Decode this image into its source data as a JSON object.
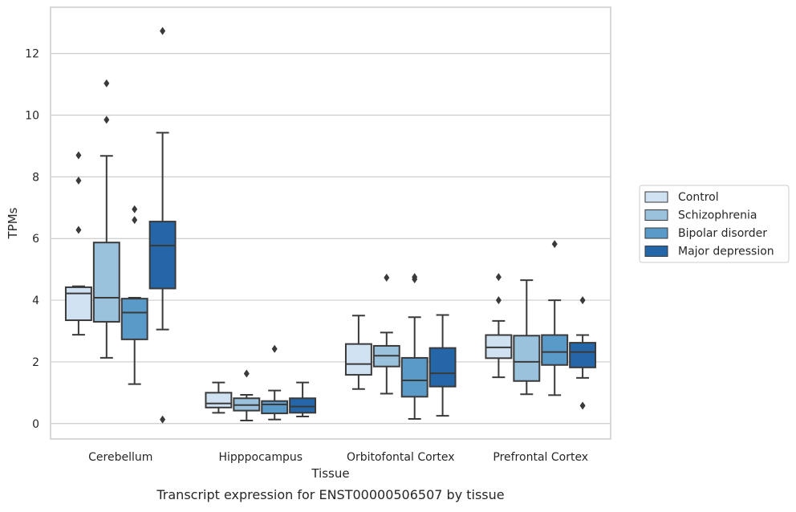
{
  "chart_data": {
    "type": "boxplot",
    "title": "Transcript expression for ENST00000506507 by tissue",
    "xlabel": "Tissue",
    "ylabel": "TPMs",
    "ylim": [
      -0.5,
      13.5
    ],
    "yticks": [
      0,
      2,
      4,
      6,
      8,
      10,
      12
    ],
    "grid": "horizontal",
    "legend_placement": "right",
    "categories": [
      "Cerebellum",
      "Hipppocampus",
      "Orbitofontal Cortex",
      "Prefrontal Cortex"
    ],
    "series": [
      {
        "name": "Control",
        "color": "#d0e2f2",
        "boxes": [
          {
            "whislo": 2.88,
            "q1": 3.35,
            "med": 4.22,
            "q3": 4.42,
            "whishi": 4.45,
            "fliers": [
              6.28,
              7.88,
              8.7
            ]
          },
          {
            "whislo": 0.35,
            "q1": 0.52,
            "med": 0.65,
            "q3": 1.0,
            "whishi": 1.33,
            "fliers": []
          },
          {
            "whislo": 1.12,
            "q1": 1.58,
            "med": 1.93,
            "q3": 2.58,
            "whishi": 3.5,
            "fliers": []
          },
          {
            "whislo": 1.5,
            "q1": 2.12,
            "med": 2.47,
            "q3": 2.87,
            "whishi": 3.33,
            "fliers": [
              4.0,
              4.75
            ]
          }
        ]
      },
      {
        "name": "Schizophrenia",
        "color": "#9ac2dd",
        "boxes": [
          {
            "whislo": 2.13,
            "q1": 3.3,
            "med": 4.08,
            "q3": 5.87,
            "whishi": 8.68,
            "fliers": [
              9.85,
              11.03
            ]
          },
          {
            "whislo": 0.1,
            "q1": 0.42,
            "med": 0.6,
            "q3": 0.82,
            "whishi": 0.93,
            "fliers": [
              1.62
            ]
          },
          {
            "whislo": 0.97,
            "q1": 1.85,
            "med": 2.2,
            "q3": 2.52,
            "whishi": 2.95,
            "fliers": [
              4.73
            ]
          },
          {
            "whislo": 0.95,
            "q1": 1.38,
            "med": 2.0,
            "q3": 2.85,
            "whishi": 4.65,
            "fliers": []
          }
        ]
      },
      {
        "name": "Bipolar disorder",
        "color": "#5a9ac9",
        "boxes": [
          {
            "whislo": 1.28,
            "q1": 2.73,
            "med": 3.6,
            "q3": 4.05,
            "whishi": 4.08,
            "fliers": [
              6.6,
              6.95
            ]
          },
          {
            "whislo": 0.13,
            "q1": 0.33,
            "med": 0.62,
            "q3": 0.73,
            "whishi": 1.07,
            "fliers": [
              2.42
            ]
          },
          {
            "whislo": 0.15,
            "q1": 0.87,
            "med": 1.4,
            "q3": 2.13,
            "whishi": 3.45,
            "fliers": [
              4.68,
              4.75
            ]
          },
          {
            "whislo": 0.92,
            "q1": 1.9,
            "med": 2.32,
            "q3": 2.87,
            "whishi": 4.0,
            "fliers": [
              5.82
            ]
          }
        ]
      },
      {
        "name": "Major depression",
        "color": "#2466a8",
        "boxes": [
          {
            "whislo": 3.05,
            "q1": 4.38,
            "med": 5.77,
            "q3": 6.55,
            "whishi": 9.43,
            "fliers": [
              0.13,
              12.73
            ]
          },
          {
            "whislo": 0.23,
            "q1": 0.35,
            "med": 0.55,
            "q3": 0.82,
            "whishi": 1.33,
            "fliers": []
          },
          {
            "whislo": 0.25,
            "q1": 1.2,
            "med": 1.63,
            "q3": 2.45,
            "whishi": 3.52,
            "fliers": []
          },
          {
            "whislo": 1.48,
            "q1": 1.82,
            "med": 2.32,
            "q3": 2.62,
            "whishi": 2.87,
            "fliers": [
              0.58,
              4.0
            ]
          }
        ]
      }
    ]
  }
}
